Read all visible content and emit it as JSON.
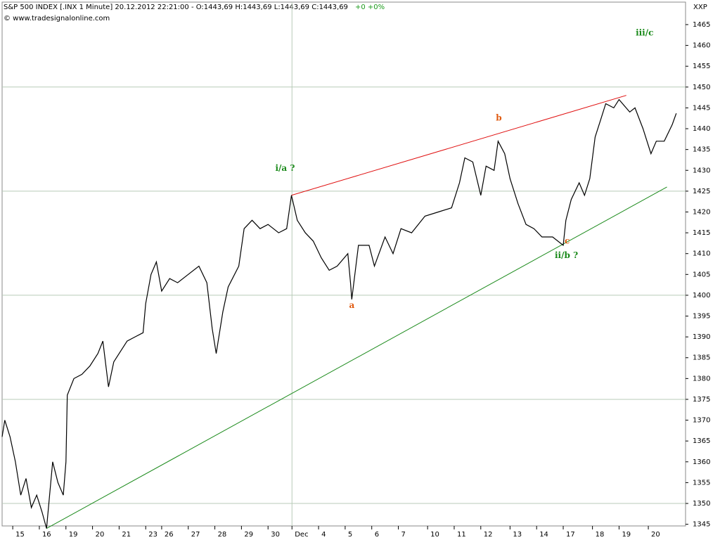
{
  "chart_data": {
    "type": "line",
    "title": "S&P 500 INDEX [.INX  1 Minute] 20.12.2012 22:21:00 - O:1443,69 H:1443,69 L:1443,69 C:1443,69",
    "title_change": "+0 +0%",
    "title_change_color": "#1a9a1a",
    "subtitle": "© www.tradesignalonline.com",
    "axis_label": "XXP",
    "ylim": [
      1344.6,
      1470.4
    ],
    "xlim": [
      -0.4,
      25.3
    ],
    "yticks": [
      1345,
      1350,
      1355,
      1360,
      1365,
      1370,
      1375,
      1380,
      1385,
      1390,
      1395,
      1400,
      1405,
      1410,
      1415,
      1420,
      1425,
      1430,
      1435,
      1440,
      1445,
      1450,
      1455,
      1460,
      1465
    ],
    "xticks": [
      {
        "value": 0,
        "label": "15"
      },
      {
        "value": 1,
        "label": "16"
      },
      {
        "value": 2,
        "label": "19"
      },
      {
        "value": 3,
        "label": "20"
      },
      {
        "value": 4,
        "label": "21"
      },
      {
        "value": 5,
        "label": "23"
      },
      {
        "value": 5.6,
        "label": "26"
      },
      {
        "value": 6.6,
        "label": "27"
      },
      {
        "value": 7.6,
        "label": "28"
      },
      {
        "value": 8.6,
        "label": "29"
      },
      {
        "value": 9.6,
        "label": "30"
      },
      {
        "value": 10.5,
        "label": "Dec"
      },
      {
        "value": 11.5,
        "label": "4"
      },
      {
        "value": 12.5,
        "label": "5"
      },
      {
        "value": 13.5,
        "label": "6"
      },
      {
        "value": 14.5,
        "label": "7"
      },
      {
        "value": 15.6,
        "label": "10"
      },
      {
        "value": 16.6,
        "label": "11"
      },
      {
        "value": 17.6,
        "label": "12"
      },
      {
        "value": 18.7,
        "label": "13"
      },
      {
        "value": 19.7,
        "label": "14"
      },
      {
        "value": 20.7,
        "label": "17"
      },
      {
        "value": 21.8,
        "label": "18"
      },
      {
        "value": 22.8,
        "label": "19"
      },
      {
        "value": 23.9,
        "label": "20"
      }
    ],
    "ygrid": [
      1350,
      1375,
      1400,
      1425,
      1450
    ],
    "xgrid": [
      10.5
    ],
    "grid_color": "#b8cbb8",
    "series": [
      {
        "name": "S&P 500 INDEX",
        "color": "#000000",
        "x": [
          -0.4,
          -0.3,
          -0.1,
          0.1,
          0.3,
          0.5,
          0.7,
          0.9,
          1.1,
          1.27,
          1.5,
          1.7,
          1.9,
          2.0,
          2.05,
          2.3,
          2.6,
          2.9,
          3.2,
          3.39,
          3.6,
          3.8,
          4.0,
          4.3,
          4.6,
          4.9,
          5.0,
          5.2,
          5.4,
          5.6,
          5.9,
          6.2,
          6.6,
          7.0,
          7.3,
          7.5,
          7.65,
          7.9,
          8.1,
          8.5,
          8.7,
          9.0,
          9.3,
          9.6,
          10.0,
          10.3,
          10.48,
          10.7,
          11.0,
          11.3,
          11.6,
          11.9,
          12.2,
          12.6,
          12.7,
          12.75,
          13.0,
          13.4,
          13.6,
          14.0,
          14.3,
          14.6,
          15.0,
          15.5,
          16.0,
          16.5,
          16.8,
          17.0,
          17.3,
          17.6,
          17.8,
          18.1,
          18.25,
          18.5,
          18.7,
          19.0,
          19.3,
          19.6,
          19.9,
          20.3,
          20.7,
          20.8,
          21.0,
          21.3,
          21.5,
          21.7,
          21.9,
          22.1,
          22.3,
          22.6,
          22.8,
          23.2,
          23.4,
          23.7,
          24.0,
          24.2,
          24.5,
          24.8,
          24.95
        ],
        "values": [
          1366,
          1370,
          1366,
          1360,
          1352,
          1356,
          1349,
          1352,
          1348,
          1344,
          1360,
          1355,
          1352,
          1360,
          1376,
          1380,
          1381,
          1383,
          1386,
          1389,
          1378,
          1384,
          1386,
          1389,
          1390,
          1391,
          1398,
          1405,
          1408,
          1401,
          1404,
          1403,
          1405,
          1407,
          1403,
          1392,
          1386,
          1396,
          1402,
          1407,
          1416,
          1418,
          1416,
          1417,
          1415,
          1416,
          1424,
          1418,
          1415,
          1413,
          1409,
          1406,
          1407,
          1410,
          1403,
          1399,
          1412,
          1412,
          1407,
          1414,
          1410,
          1416,
          1415,
          1419,
          1420,
          1421,
          1427,
          1433,
          1432,
          1424,
          1431,
          1430,
          1437,
          1434,
          1428,
          1422,
          1417,
          1416,
          1414,
          1414,
          1412,
          1418,
          1423,
          1427,
          1424,
          1428,
          1438,
          1442,
          1446,
          1445,
          1447,
          1444,
          1445,
          1440,
          1434,
          1437,
          1437,
          1441,
          1443.69
        ]
      }
    ],
    "trendlines": [
      {
        "color": "#e01010",
        "x": [
          10.48,
          23.07
        ],
        "values": [
          1424,
          1448
        ]
      },
      {
        "color": "#1a8a1a",
        "x": [
          1.27,
          24.6
        ],
        "values": [
          1344,
          1426
        ]
      }
    ],
    "annotations": [
      {
        "text": "i/a ?",
        "x": 10.24,
        "y": 1430.5,
        "color": "#1a8a1a"
      },
      {
        "text": "a",
        "x": 12.75,
        "y": 1397.5,
        "color": "#e05a10"
      },
      {
        "text": "b",
        "x": 18.28,
        "y": 1442.5,
        "color": "#e05a10"
      },
      {
        "text": "c",
        "x": 20.85,
        "y": 1413,
        "color": "#e05a10"
      },
      {
        "text": "ii/b ?",
        "x": 20.82,
        "y": 1409.5,
        "color": "#1a8a1a"
      },
      {
        "text": "iii/c",
        "x": 23.76,
        "y": 1463,
        "color": "#1a8a1a"
      }
    ]
  }
}
